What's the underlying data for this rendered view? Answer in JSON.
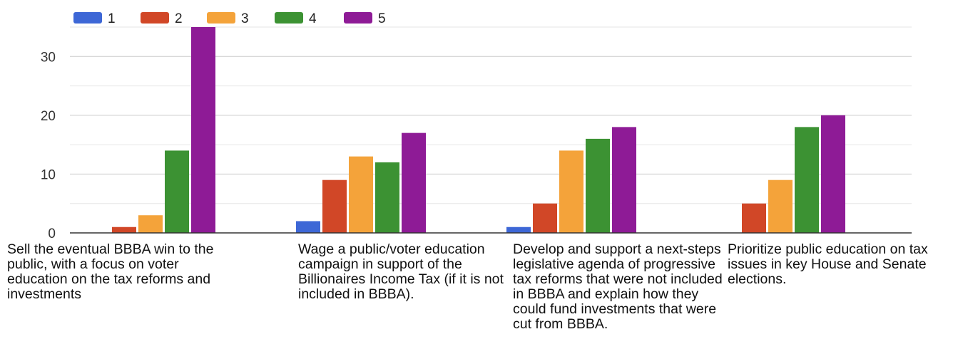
{
  "chart_data": {
    "type": "bar",
    "categories": [
      "Sell the eventual BBBA win to the public, with a focus on voter education on the tax reforms and investments",
      "Wage a public/voter education campaign in support of the Billionaires Income Tax (if it is not included in BBBA).",
      "Develop and support a next-steps legislative agenda of progressive tax reforms that were not included in BBBA and explain how they could fund investments that were cut from BBBA.",
      "Prioritize public education on tax issues in key House and Senate elections."
    ],
    "series": [
      {
        "name": "1",
        "color": "#3d67d6",
        "values": [
          0,
          2,
          1,
          0
        ]
      },
      {
        "name": "2",
        "color": "#d14727",
        "values": [
          1,
          9,
          5,
          5
        ]
      },
      {
        "name": "3",
        "color": "#f4a33a",
        "values": [
          3,
          13,
          14,
          9
        ]
      },
      {
        "name": "4",
        "color": "#3c9233",
        "values": [
          14,
          12,
          16,
          18
        ]
      },
      {
        "name": "5",
        "color": "#8e1b96",
        "values": [
          35,
          17,
          18,
          20
        ]
      }
    ],
    "yticks": [
      "0",
      "10",
      "20",
      "30"
    ],
    "ylim": [
      0,
      35
    ],
    "grid": true,
    "legend_position": "top-left"
  }
}
